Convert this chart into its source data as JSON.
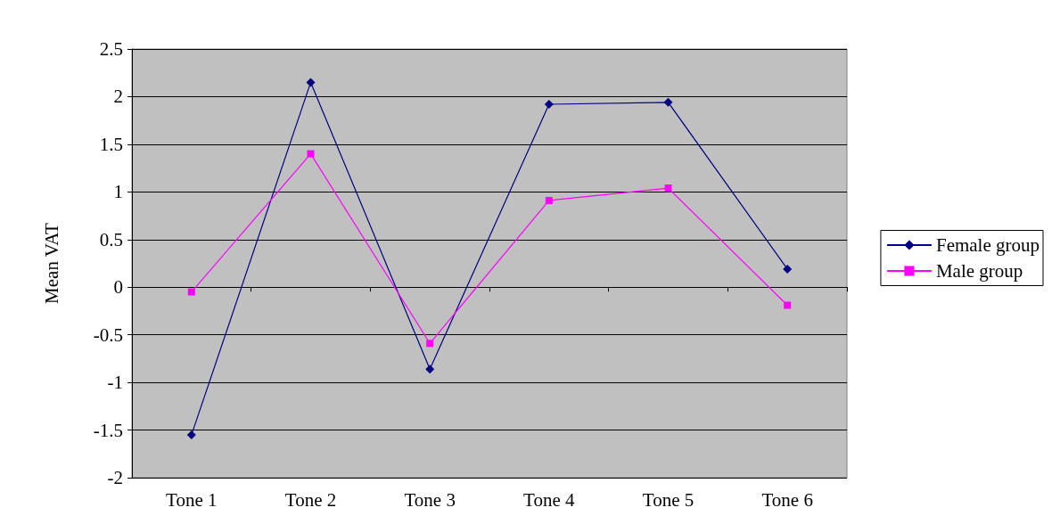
{
  "chart_data": {
    "type": "line",
    "ylabel": "Mean VAT",
    "categories": [
      "Tone 1",
      "Tone 2",
      "Tone 3",
      "Tone 4",
      "Tone 5",
      "Tone 6"
    ],
    "series": [
      {
        "name": "Female group",
        "color": "#000080",
        "marker": "diamond",
        "values": [
          -1.55,
          2.15,
          -0.86,
          1.92,
          1.94,
          0.19
        ]
      },
      {
        "name": "Male group",
        "color": "#ff00ff",
        "marker": "square",
        "values": [
          -0.05,
          1.4,
          -0.59,
          0.91,
          1.04,
          -0.19
        ]
      }
    ],
    "ylim": [
      -2,
      2.5
    ],
    "yticks": [
      -2,
      -1.5,
      -1,
      -0.5,
      0,
      0.5,
      1,
      1.5,
      2,
      2.5
    ],
    "grid": "y",
    "legend": "right"
  }
}
